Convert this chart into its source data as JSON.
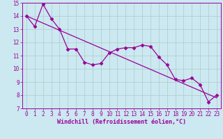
{
  "x": [
    0,
    1,
    2,
    3,
    4,
    5,
    6,
    7,
    8,
    9,
    10,
    11,
    12,
    13,
    14,
    15,
    16,
    17,
    18,
    19,
    20,
    21,
    22,
    23
  ],
  "line1": [
    14.0,
    13.2,
    14.9,
    13.8,
    13.0,
    11.5,
    11.5,
    10.5,
    10.3,
    10.4,
    11.2,
    11.5,
    11.6,
    11.6,
    11.8,
    11.7,
    10.9,
    10.3,
    9.2,
    9.1,
    9.3,
    8.8,
    7.5,
    8.0
  ],
  "line2_x": [
    0,
    23
  ],
  "line2_y": [
    14.0,
    7.8
  ],
  "xlim": [
    -0.5,
    23.5
  ],
  "ylim": [
    7,
    15
  ],
  "yticks": [
    7,
    8,
    9,
    10,
    11,
    12,
    13,
    14,
    15
  ],
  "xticks": [
    0,
    1,
    2,
    3,
    4,
    5,
    6,
    7,
    8,
    9,
    10,
    11,
    12,
    13,
    14,
    15,
    16,
    17,
    18,
    19,
    20,
    21,
    22,
    23
  ],
  "xlabel": "Windchill (Refroidissement éolien,°C)",
  "line_color": "#990099",
  "bg_color": "#cce8f0",
  "grid_color": "#aacccc",
  "marker": "D",
  "marker_size": 2.5,
  "linewidth": 0.9,
  "tick_fontsize": 5.5,
  "label_fontsize": 6.0
}
